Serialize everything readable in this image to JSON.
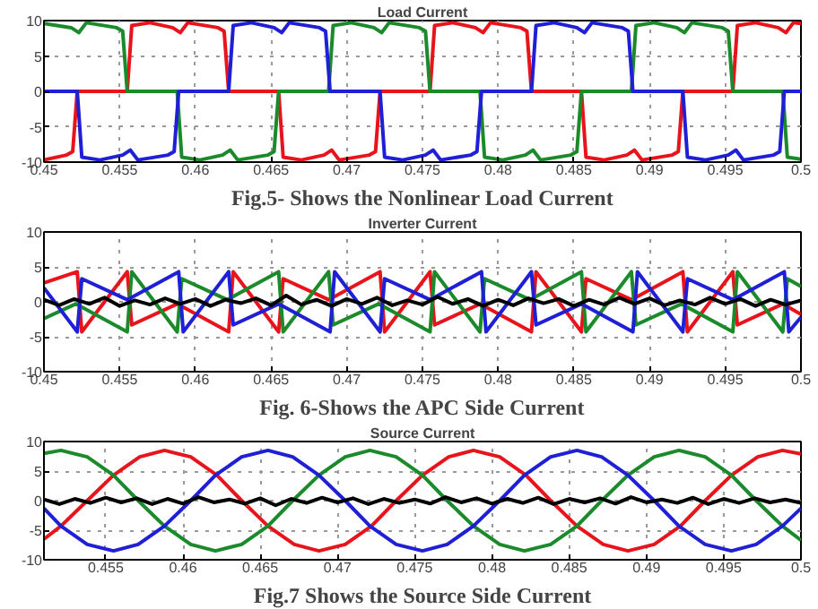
{
  "chart_data": [
    {
      "type": "line",
      "title": "Load Current",
      "annotations": [
        "Fig.5- Shows the Nonlinear Load Current"
      ],
      "xlim": [
        0.45,
        0.5
      ],
      "xticks": [
        0.45,
        0.455,
        0.46,
        0.465,
        0.47,
        0.475,
        0.48,
        0.485,
        0.49,
        0.495,
        0.5
      ],
      "ylim": [
        -10,
        10
      ],
      "yticks": [
        -10,
        -5,
        0,
        5,
        10
      ],
      "grid": true,
      "series": [
        {
          "color": "#e8141b",
          "x": [
            0.45,
            0.4515,
            0.4519,
            0.4522,
            0.4555,
            0.4558,
            0.457,
            0.4585,
            0.459,
            0.4595,
            0.4615,
            0.4619,
            0.4622,
            0.4655,
            0.4658,
            0.467,
            0.4685,
            0.469,
            0.4695,
            0.4715,
            0.4719,
            0.4722,
            0.4755,
            0.4758,
            0.477,
            0.4785,
            0.479,
            0.4795,
            0.4815,
            0.4819,
            0.4822,
            0.4855,
            0.4858,
            0.487,
            0.4885,
            0.489,
            0.4895,
            0.4915,
            0.4919,
            0.4922,
            0.4955,
            0.4958,
            0.497,
            0.4985,
            0.499,
            0.4995,
            0.5
          ],
          "values": [
            -9.7,
            -9.0,
            -8.5,
            0,
            0,
            9.3,
            9.7,
            9.0,
            8.3,
            9.7,
            9.0,
            8.5,
            0,
            0,
            -9.3,
            -9.7,
            -9.0,
            -8.3,
            -9.7,
            -9.0,
            -8.5,
            0,
            0,
            9.3,
            9.7,
            9.0,
            8.3,
            9.7,
            9.0,
            8.5,
            0,
            0,
            -9.3,
            -9.7,
            -9.0,
            -8.3,
            -9.7,
            -9.0,
            -8.5,
            0,
            0,
            9.3,
            9.7,
            9.0,
            8.3,
            9.7,
            9.6
          ]
        },
        {
          "color": "#1a8a2a",
          "x": [
            0.45,
            0.4518,
            0.4523,
            0.4528,
            0.4548,
            0.4552,
            0.4555,
            0.4588,
            0.4591,
            0.4603,
            0.4618,
            0.4623,
            0.4628,
            0.4648,
            0.4652,
            0.4655,
            0.4688,
            0.4691,
            0.4703,
            0.4718,
            0.4723,
            0.4728,
            0.4748,
            0.4752,
            0.4755,
            0.4788,
            0.4791,
            0.4803,
            0.4818,
            0.4823,
            0.4828,
            0.4848,
            0.4852,
            0.4855,
            0.4888,
            0.4891,
            0.4903,
            0.4918,
            0.4923,
            0.4928,
            0.4948,
            0.4952,
            0.4955,
            0.4988,
            0.4991,
            0.5
          ],
          "values": [
            9.6,
            9.0,
            8.3,
            9.7,
            9.0,
            8.5,
            0,
            0,
            -9.3,
            -9.7,
            -9.0,
            -8.3,
            -9.7,
            -9.0,
            -8.5,
            0,
            0,
            9.3,
            9.7,
            9.0,
            8.3,
            9.7,
            9.0,
            8.5,
            0,
            0,
            -9.3,
            -9.7,
            -9.0,
            -8.3,
            -9.7,
            -9.0,
            -8.5,
            0,
            0,
            9.3,
            9.7,
            9.0,
            8.3,
            9.7,
            9.0,
            8.5,
            0,
            0,
            -9.3,
            -9.6
          ]
        },
        {
          "color": "#1f1fd6",
          "x": [
            0.45,
            0.4522,
            0.4525,
            0.4537,
            0.4552,
            0.4557,
            0.4562,
            0.4582,
            0.4586,
            0.4589,
            0.4622,
            0.4625,
            0.4637,
            0.4652,
            0.4657,
            0.4662,
            0.4682,
            0.4686,
            0.4689,
            0.4722,
            0.4725,
            0.4737,
            0.4752,
            0.4757,
            0.4762,
            0.4782,
            0.4786,
            0.4789,
            0.4822,
            0.4825,
            0.4837,
            0.4852,
            0.4857,
            0.4862,
            0.4882,
            0.4886,
            0.4889,
            0.4922,
            0.4925,
            0.4937,
            0.4952,
            0.4957,
            0.4962,
            0.4982,
            0.4986,
            0.4989,
            0.5
          ],
          "values": [
            0,
            0,
            -9.3,
            -9.7,
            -9.0,
            -8.3,
            -9.7,
            -9.0,
            -8.5,
            0,
            0,
            9.3,
            9.7,
            9.0,
            8.3,
            9.7,
            9.0,
            8.5,
            0,
            0,
            -9.3,
            -9.7,
            -9.0,
            -8.3,
            -9.7,
            -9.0,
            -8.5,
            0,
            0,
            9.3,
            9.7,
            9.0,
            8.3,
            9.7,
            9.0,
            8.5,
            0,
            0,
            -9.3,
            -9.7,
            -9.0,
            -8.3,
            -9.7,
            -9.0,
            -8.5,
            0,
            0
          ]
        }
      ]
    },
    {
      "type": "line",
      "title": "Inverter Current",
      "annotations": [
        "Fig. 6-Shows the APC Side Current"
      ],
      "xlim": [
        0.45,
        0.5
      ],
      "xticks": [
        0.45,
        0.455,
        0.46,
        0.465,
        0.47,
        0.475,
        0.48,
        0.485,
        0.49,
        0.495,
        0.5
      ],
      "ylim": [
        -10,
        10
      ],
      "yticks": [
        -10,
        -5,
        0,
        5,
        10
      ],
      "grid": true,
      "series": [
        {
          "color": "#e8141b",
          "x": [
            0.45,
            0.4522,
            0.4525,
            0.4555,
            0.4558,
            0.4588,
            0.4622,
            0.4625,
            0.4655,
            0.4658,
            0.4688,
            0.4722,
            0.4725,
            0.4755,
            0.4758,
            0.4788,
            0.4822,
            0.4825,
            0.4855,
            0.4858,
            0.4888,
            0.4922,
            0.4925,
            0.4955,
            0.4958,
            0.4988,
            0.5
          ],
          "values": [
            2.7,
            4.3,
            -4.3,
            4.3,
            -3.3,
            -0.3,
            -4.3,
            4.3,
            -4.3,
            3.3,
            0.3,
            4.3,
            -4.3,
            4.3,
            -3.3,
            -0.3,
            -4.3,
            4.3,
            -4.3,
            3.3,
            0.3,
            4.3,
            -4.3,
            4.3,
            -3.3,
            -0.3,
            -1.8
          ]
        },
        {
          "color": "#1a8a2a",
          "x": [
            0.45,
            0.4521,
            0.4555,
            0.4558,
            0.4588,
            0.4591,
            0.4621,
            0.4655,
            0.4658,
            0.4688,
            0.4691,
            0.4721,
            0.4755,
            0.4758,
            0.4788,
            0.4791,
            0.4821,
            0.4855,
            0.4858,
            0.4888,
            0.4891,
            0.4921,
            0.4955,
            0.4958,
            0.4988,
            0.4991,
            0.5
          ],
          "values": [
            -2.4,
            -0.3,
            -4.3,
            4.3,
            -4.3,
            3.3,
            0.3,
            4.3,
            -4.3,
            4.3,
            -3.3,
            -0.3,
            -4.3,
            4.3,
            -4.3,
            3.3,
            0.3,
            4.3,
            -4.3,
            4.3,
            -3.3,
            -0.3,
            -4.3,
            4.3,
            -4.3,
            3.3,
            2.2
          ]
        },
        {
          "color": "#1f1fd6",
          "x": [
            0.45,
            0.4522,
            0.4525,
            0.4555,
            0.4589,
            0.4592,
            0.4622,
            0.4625,
            0.4655,
            0.4689,
            0.4692,
            0.4722,
            0.4725,
            0.4755,
            0.4789,
            0.4792,
            0.4822,
            0.4825,
            0.4855,
            0.4889,
            0.4892,
            0.4922,
            0.4925,
            0.4955,
            0.4989,
            0.4992,
            0.5
          ],
          "values": [
            2.0,
            -4.3,
            3.3,
            0.3,
            4.3,
            -4.3,
            4.3,
            -3.3,
            -0.3,
            -4.3,
            4.3,
            -4.3,
            3.3,
            0.3,
            4.3,
            -4.3,
            4.3,
            -3.3,
            -0.3,
            -4.3,
            4.3,
            -4.3,
            3.3,
            0.3,
            4.3,
            -4.3,
            -2.2
          ]
        },
        {
          "color": "#000000",
          "x": [
            0.45,
            0.451,
            0.452,
            0.453,
            0.454,
            0.455,
            0.456,
            0.457,
            0.458,
            0.459,
            0.46,
            0.461,
            0.462,
            0.463,
            0.464,
            0.465,
            0.466,
            0.467,
            0.468,
            0.469,
            0.47,
            0.471,
            0.472,
            0.473,
            0.474,
            0.475,
            0.476,
            0.477,
            0.478,
            0.479,
            0.48,
            0.481,
            0.482,
            0.483,
            0.484,
            0.485,
            0.486,
            0.487,
            0.488,
            0.489,
            0.49,
            0.491,
            0.492,
            0.493,
            0.494,
            0.495,
            0.496,
            0.497,
            0.498,
            0.499,
            0.5
          ],
          "values": [
            0.3,
            -0.5,
            0.4,
            -0.3,
            0.6,
            -0.6,
            0.2,
            -0.4,
            0.5,
            -0.3,
            0.4,
            -0.6,
            0.3,
            -0.2,
            0.5,
            -0.5,
            0.9,
            -0.4,
            0.3,
            -0.6,
            0.4,
            -0.3,
            0.6,
            -0.5,
            0.2,
            -0.4,
            0.7,
            -0.3,
            0.4,
            -0.6,
            0.3,
            -0.5,
            0.5,
            -0.2,
            0.4,
            -0.6,
            0.3,
            -0.4,
            0.6,
            -0.3,
            0.5,
            -0.5,
            0.2,
            -0.4,
            0.6,
            -0.3,
            0.4,
            -0.6,
            0.3,
            -0.4,
            0.2
          ]
        }
      ]
    },
    {
      "type": "line",
      "title": "Source Current",
      "annotations": [
        "Fig.7 Shows the Source Side Current"
      ],
      "xlim": [
        0.451,
        0.5
      ],
      "xticks": [
        0.455,
        0.46,
        0.465,
        0.47,
        0.475,
        0.48,
        0.485,
        0.49,
        0.495,
        0.5
      ],
      "ylim": [
        -10,
        10
      ],
      "yticks": [
        -10,
        -5,
        0,
        5,
        10
      ],
      "grid": true,
      "series": [
        {
          "color": "#e8141b",
          "x": [
            0.451,
            0.4521,
            0.4538,
            0.4555,
            0.4572,
            0.4588,
            0.4605,
            0.4622,
            0.4638,
            0.4655,
            0.4672,
            0.4688,
            0.4705,
            0.4722,
            0.4738,
            0.4755,
            0.4772,
            0.4788,
            0.4805,
            0.4822,
            0.4838,
            0.4855,
            0.4872,
            0.4888,
            0.4905,
            0.4922,
            0.4938,
            0.4955,
            0.4972,
            0.4988,
            0.5
          ],
          "values": [
            -6.5,
            -4.3,
            0,
            4.3,
            7.4,
            8.5,
            7.4,
            4.3,
            0,
            -4.3,
            -7.4,
            -8.5,
            -7.4,
            -4.3,
            0,
            4.3,
            7.4,
            8.5,
            7.4,
            4.3,
            0,
            -4.3,
            -7.4,
            -8.5,
            -7.4,
            -4.3,
            0,
            4.3,
            7.4,
            8.5,
            7.9
          ]
        },
        {
          "color": "#1a8a2a",
          "x": [
            0.451,
            0.4521,
            0.4538,
            0.4555,
            0.4571,
            0.4588,
            0.4605,
            0.4621,
            0.4638,
            0.4655,
            0.4671,
            0.4688,
            0.4705,
            0.4721,
            0.4738,
            0.4755,
            0.4771,
            0.4788,
            0.4805,
            0.4821,
            0.4838,
            0.4855,
            0.4871,
            0.4888,
            0.4905,
            0.4921,
            0.4938,
            0.4955,
            0.4971,
            0.4988,
            0.5
          ],
          "values": [
            8.0,
            8.5,
            7.4,
            4.3,
            0,
            -4.3,
            -7.4,
            -8.5,
            -7.4,
            -4.3,
            0,
            4.3,
            7.4,
            8.5,
            7.4,
            4.3,
            0,
            -4.3,
            -7.4,
            -8.5,
            -7.4,
            -4.3,
            0,
            4.3,
            7.4,
            8.5,
            7.4,
            4.3,
            0,
            -4.3,
            -6.7
          ]
        },
        {
          "color": "#1f1fd6",
          "x": [
            0.451,
            0.4521,
            0.4538,
            0.4555,
            0.4571,
            0.4588,
            0.4605,
            0.4621,
            0.4638,
            0.4655,
            0.4671,
            0.4688,
            0.4705,
            0.4721,
            0.4738,
            0.4755,
            0.4771,
            0.4788,
            0.4805,
            0.4821,
            0.4838,
            0.4855,
            0.4871,
            0.4888,
            0.4905,
            0.4921,
            0.4938,
            0.4955,
            0.4971,
            0.4988,
            0.5
          ],
          "values": [
            -1.3,
            -4.3,
            -7.4,
            -8.5,
            -7.4,
            -4.3,
            0,
            4.3,
            7.4,
            8.5,
            7.4,
            4.3,
            0,
            -4.3,
            -7.4,
            -8.5,
            -7.4,
            -4.3,
            0,
            4.3,
            7.4,
            8.5,
            7.4,
            4.3,
            0,
            -4.3,
            -7.4,
            -8.5,
            -7.4,
            -4.3,
            -1.3
          ]
        },
        {
          "color": "#000000",
          "x": [
            0.451,
            0.452,
            0.453,
            0.454,
            0.455,
            0.456,
            0.457,
            0.458,
            0.459,
            0.46,
            0.461,
            0.462,
            0.463,
            0.464,
            0.465,
            0.466,
            0.467,
            0.468,
            0.469,
            0.47,
            0.471,
            0.472,
            0.473,
            0.474,
            0.475,
            0.476,
            0.477,
            0.478,
            0.479,
            0.48,
            0.481,
            0.482,
            0.483,
            0.484,
            0.485,
            0.486,
            0.487,
            0.488,
            0.489,
            0.49,
            0.491,
            0.492,
            0.493,
            0.494,
            0.495,
            0.496,
            0.497,
            0.498,
            0.499,
            0.5
          ],
          "values": [
            0.2,
            -0.6,
            0.3,
            -0.4,
            0.5,
            -0.3,
            0.4,
            -0.6,
            0.3,
            -0.5,
            0.6,
            -0.3,
            0.2,
            -0.5,
            0.4,
            -0.8,
            0.3,
            -0.4,
            0.5,
            -0.3,
            0.4,
            -0.6,
            0.3,
            -0.4,
            0.2,
            -0.5,
            0.6,
            -0.3,
            0.4,
            -0.5,
            0.3,
            -0.4,
            0.5,
            -0.6,
            0.3,
            -0.3,
            0.4,
            -0.5,
            0.6,
            -0.3,
            0.2,
            -0.4,
            0.5,
            -0.6,
            0.3,
            -0.4,
            0.4,
            -0.3,
            0.2,
            -0.4
          ]
        }
      ]
    }
  ]
}
